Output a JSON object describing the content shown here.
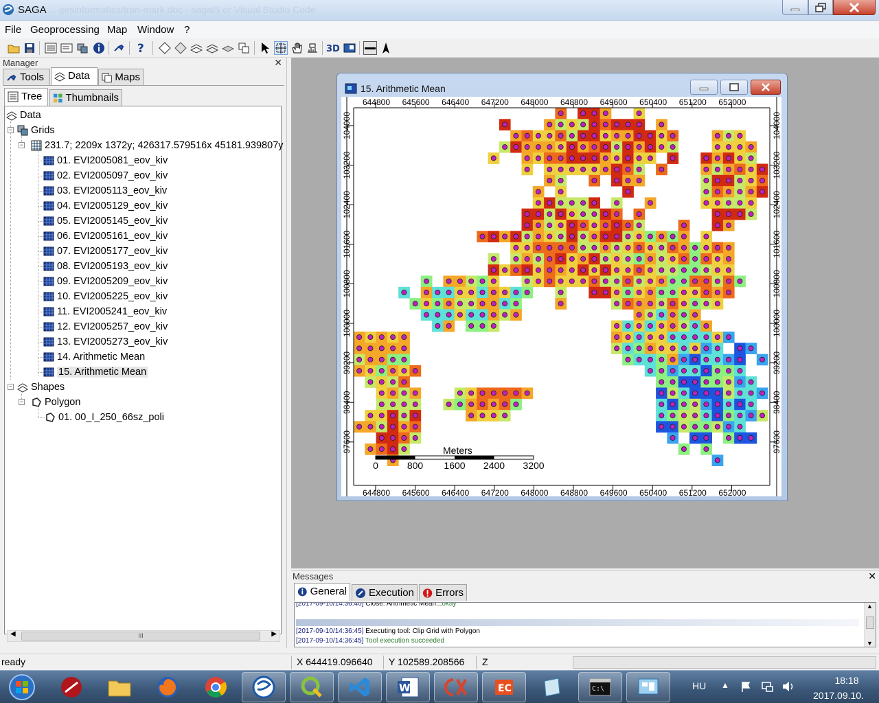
{
  "window": {
    "title": "SAGA",
    "title_faded": "... gesinformatics/tran-mark.doc - saga/5 or Visual Studio Code"
  },
  "menu": [
    "File",
    "Geoprocessing",
    "Map",
    "Window",
    "?"
  ],
  "manager": {
    "title": "Manager",
    "tabs": [
      "Tools",
      "Data",
      "Maps"
    ],
    "subtabs": [
      "Tree",
      "Thumbnails"
    ],
    "tree": {
      "root": "Data",
      "grids_label": "Grids",
      "system": "231.7; 2209x 1372y; 426317.579516x 45181.939807y",
      "grids": [
        "01. EVI2005081_eov_kiv",
        "02. EVI2005097_eov_kiv",
        "03. EVI2005113_eov_kiv",
        "04. EVI2005129_eov_kiv",
        "05. EVI2005145_eov_kiv",
        "06. EVI2005161_eov_kiv",
        "07. EVI2005177_eov_kiv",
        "08. EVI2005193_eov_kiv",
        "09. EVI2005209_eov_kiv",
        "10. EVI2005225_eov_kiv",
        "11. EVI2005241_eov_kiv",
        "12. EVI2005257_eov_kiv",
        "13. EVI2005273_eov_kiv",
        "14. Arithmetic Mean",
        "15. Arithmetic Mean"
      ],
      "shapes_label": "Shapes",
      "polygon_label": "Polygon",
      "shapes": [
        "01. 00_I_250_66sz_poli"
      ]
    },
    "scroll_grip": "III"
  },
  "map": {
    "title": "15. Arithmetic Mean",
    "x_ticks": [
      "644800",
      "645600",
      "646400",
      "647200",
      "648000",
      "648800",
      "649600",
      "650400",
      "651200",
      "652000"
    ],
    "y_ticks": [
      "104000",
      "103200",
      "102400",
      "101600",
      "100800",
      "100000",
      "99200",
      "98400",
      "97600"
    ],
    "scalebar": {
      "unit": "Meters",
      "labels": [
        "0",
        "800",
        "1600",
        "2400",
        "3200"
      ]
    },
    "palette": [
      "#0b1f99",
      "#1d54e0",
      "#3aa4f0",
      "#5fe0d8",
      "#8ef082",
      "#c8e86a",
      "#f0d040",
      "#f5a72a",
      "#ee6a1c",
      "#d22a12"
    ],
    "point_color": "#c020c0"
  },
  "messages": {
    "title": "Messages",
    "tabs": [
      "General",
      "Execution",
      "Errors"
    ],
    "log": [
      {
        "ts": "[2017-09-10/14:36:40]",
        "text": "Close: Arithmetic Mean...",
        "ok": "okay"
      },
      {
        "ts": "[2017-09-10/14:36:45]",
        "text": "Executing tool: Clip Grid with Polygon",
        "ok": ""
      },
      {
        "ts": "[2017-09-10/14:36:45]",
        "text": "",
        "ok": "Tool execution succeeded"
      }
    ]
  },
  "status": {
    "text": "ready",
    "x": "X 644419.096640",
    "y": "Y 102589.208566",
    "z": "Z"
  },
  "taskbar": {
    "apps": [
      "start-orb",
      "antivirus",
      "file-explorer",
      "firefox",
      "chrome",
      "saga",
      "qgis",
      "visual-studio-code",
      "word",
      "pdf-tool",
      "office-app",
      "notes-app",
      "terminal",
      "control-panel"
    ],
    "lang": "HU",
    "time": "18:18",
    "date": "2017.09.10."
  }
}
